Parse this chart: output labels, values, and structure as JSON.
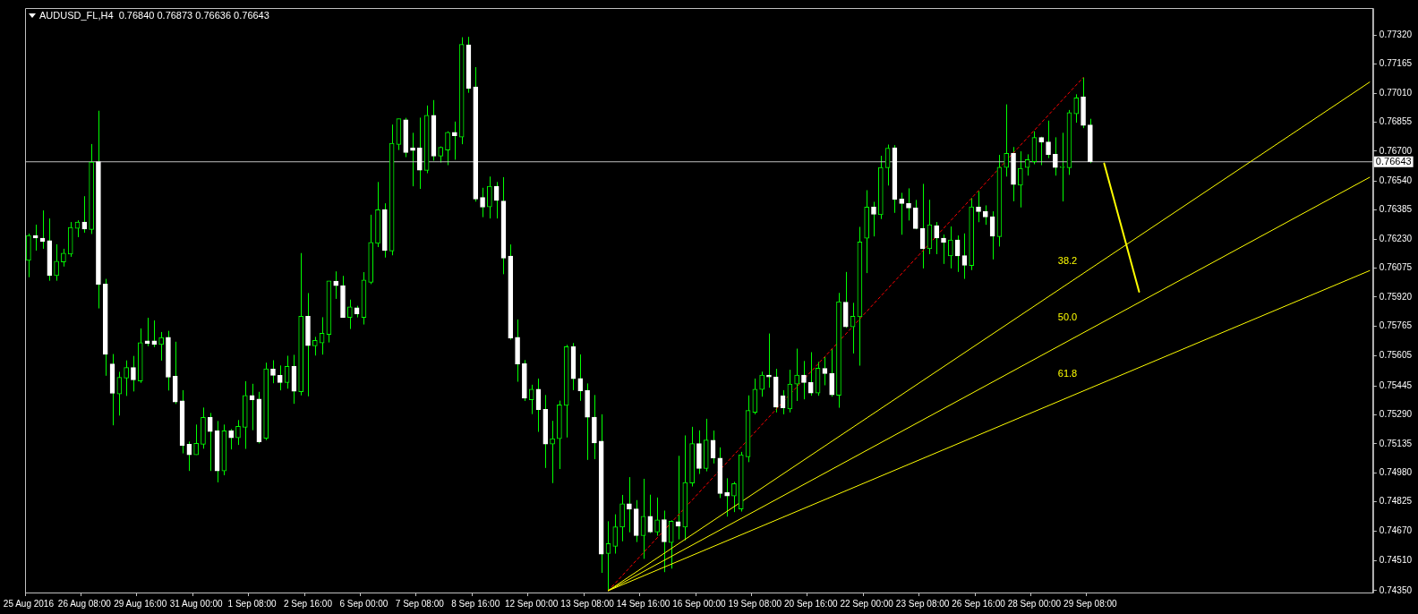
{
  "chart_data": {
    "type": "candlestick",
    "title": "AUDUSD_FL,H4  0.76840 0.76873 0.76636 0.76643",
    "categories": [
      "25 Aug 2016",
      null,
      null,
      null,
      null,
      null,
      null,
      null,
      "26 Aug 08:00",
      null,
      null,
      null,
      null,
      null,
      null,
      null,
      "29 Aug 16:00",
      null,
      null,
      null,
      null,
      null,
      null,
      null,
      "31 Aug 00:00",
      null,
      null,
      null,
      null,
      null,
      null,
      null,
      "1 Sep 08:00",
      null,
      null,
      null,
      null,
      null,
      null,
      null,
      "2 Sep 16:00",
      null,
      null,
      null,
      null,
      null,
      null,
      null,
      "6 Sep 00:00",
      null,
      null,
      null,
      null,
      null,
      null,
      null,
      "7 Sep 08:00",
      null,
      null,
      null,
      null,
      null,
      null,
      null,
      "8 Sep 16:00",
      null,
      null,
      null,
      null,
      null,
      null,
      null,
      "12 Sep 00:00",
      null,
      null,
      null,
      null,
      null,
      null,
      null,
      "13 Sep 08:00",
      null,
      null,
      null,
      null,
      null,
      null,
      null,
      "14 Sep 16:00",
      null,
      null,
      null,
      null,
      null,
      null,
      null,
      "16 Sep 00:00",
      null,
      null,
      null,
      null,
      null,
      null,
      null,
      "19 Sep 08:00",
      null,
      null,
      null,
      null,
      null,
      null,
      null,
      "20 Sep 16:00",
      null,
      null,
      null,
      null,
      null,
      null,
      null,
      "22 Sep 00:00",
      null,
      null,
      null,
      null,
      null,
      null,
      null,
      "23 Sep 08:00",
      null,
      null,
      null,
      null,
      null,
      null,
      null,
      "26 Sep 16:00",
      null,
      null,
      null,
      null,
      null,
      null,
      null,
      "28 Sep 00:00",
      null,
      null,
      null,
      null,
      null,
      null,
      null,
      "29 Sep 08:00",
      null,
      null,
      null,
      null,
      null,
      null,
      null,
      null,
      null,
      null,
      null,
      null,
      null,
      null,
      null,
      null,
      null,
      null,
      null,
      null,
      null,
      null,
      null,
      null,
      null,
      null,
      null,
      null,
      null,
      null,
      null,
      null,
      null,
      null,
      null,
      null,
      null,
      null,
      null,
      null
    ],
    "ohlc": [
      [
        0.76116,
        0.76259,
        0.76026,
        0.76249
      ],
      [
        0.76249,
        0.76307,
        0.76168,
        0.76235
      ],
      [
        0.76235,
        0.76383,
        0.76178,
        0.76216
      ],
      [
        0.76221,
        0.7634,
        0.76007,
        0.76035
      ],
      [
        0.76035,
        0.76202,
        0.76007,
        0.76111
      ],
      [
        0.76107,
        0.76178,
        0.76083,
        0.76154
      ],
      [
        0.76149,
        0.76321,
        0.76135,
        0.76292
      ],
      [
        0.76287,
        0.7633,
        0.7624,
        0.76321
      ],
      [
        0.76321,
        0.76459,
        0.76264,
        0.76283
      ],
      [
        0.76281,
        0.76738,
        0.76257,
        0.76642
      ],
      [
        0.76644,
        0.76916,
        0.75859,
        0.75988
      ],
      [
        0.75989,
        0.76017,
        0.75499,
        0.75613
      ],
      [
        0.75562,
        0.75615,
        0.75234,
        0.75405
      ],
      [
        0.75401,
        0.7552,
        0.75286,
        0.75491
      ],
      [
        0.75486,
        0.75581,
        0.75391,
        0.75543
      ],
      [
        0.75543,
        0.75605,
        0.75415,
        0.75477
      ],
      [
        0.75471,
        0.75752,
        0.75461,
        0.75676
      ],
      [
        0.75685,
        0.75809,
        0.75657,
        0.75671
      ],
      [
        0.75685,
        0.75795,
        0.75652,
        0.75666
      ],
      [
        0.75666,
        0.75733,
        0.7558,
        0.75704
      ],
      [
        0.75705,
        0.75739,
        0.7542,
        0.75491
      ],
      [
        0.75496,
        0.75681,
        0.75348,
        0.75358
      ],
      [
        0.75365,
        0.75422,
        0.75084,
        0.75126
      ],
      [
        0.75133,
        0.75147,
        0.7499,
        0.75076
      ],
      [
        0.75076,
        0.75238,
        0.75076,
        0.75138
      ],
      [
        0.75133,
        0.75329,
        0.75109,
        0.75276
      ],
      [
        0.75276,
        0.753,
        0.7499,
        0.752
      ],
      [
        0.75205,
        0.75257,
        0.74929,
        0.7499
      ],
      [
        0.7499,
        0.75238,
        0.74967,
        0.75205
      ],
      [
        0.75205,
        0.75214,
        0.75105,
        0.75167
      ],
      [
        0.75167,
        0.75262,
        0.75129,
        0.75229
      ],
      [
        0.75223,
        0.7547,
        0.75108,
        0.75394
      ],
      [
        0.75394,
        0.75456,
        0.75208,
        0.7537
      ],
      [
        0.75375,
        0.75413,
        0.75137,
        0.75146
      ],
      [
        0.75165,
        0.75569,
        0.75155,
        0.75536
      ],
      [
        0.75535,
        0.75582,
        0.75459,
        0.75501
      ],
      [
        0.75501,
        0.75554,
        0.75421,
        0.75463
      ],
      [
        0.75463,
        0.75606,
        0.7543,
        0.75549
      ],
      [
        0.75549,
        0.75611,
        0.75349,
        0.75416
      ],
      [
        0.75413,
        0.76155,
        0.75394,
        0.75817
      ],
      [
        0.75817,
        0.75941,
        0.75389,
        0.7566
      ],
      [
        0.75659,
        0.75707,
        0.75607,
        0.75688
      ],
      [
        0.75674,
        0.75812,
        0.75612,
        0.75726
      ],
      [
        0.7572,
        0.76006,
        0.75677,
        0.76006
      ],
      [
        0.76005,
        0.76057,
        0.7591,
        0.75981
      ],
      [
        0.75981,
        0.76033,
        0.7581,
        0.7581
      ],
      [
        0.75811,
        0.75906,
        0.75749,
        0.75868
      ],
      [
        0.75863,
        0.75873,
        0.75811,
        0.7583
      ],
      [
        0.75811,
        0.76053,
        0.75773,
        0.76011
      ],
      [
        0.75998,
        0.7636,
        0.75989,
        0.76212
      ],
      [
        0.76207,
        0.76535,
        0.76187,
        0.76387
      ],
      [
        0.76387,
        0.76421,
        0.76131,
        0.76168
      ],
      [
        0.76166,
        0.76842,
        0.76143,
        0.76742
      ],
      [
        0.76735,
        0.76873,
        0.76706,
        0.76873
      ],
      [
        0.76868,
        0.76878,
        0.76668,
        0.76692
      ],
      [
        0.76717,
        0.76798,
        0.76512,
        0.76703
      ],
      [
        0.76717,
        0.76879,
        0.76498,
        0.76598
      ],
      [
        0.76597,
        0.76944,
        0.76582,
        0.76892
      ],
      [
        0.76892,
        0.76973,
        0.76649,
        0.76673
      ],
      [
        0.76673,
        0.76725,
        0.76639,
        0.7672
      ],
      [
        0.76706,
        0.76806,
        0.76625,
        0.76801
      ],
      [
        0.76801,
        0.76858,
        0.76654,
        0.76782
      ],
      [
        0.76775,
        0.77309,
        0.76737,
        0.77271
      ],
      [
        0.77269,
        0.77311,
        0.77012,
        0.77035
      ],
      [
        0.77044,
        0.77149,
        0.7643,
        0.76444
      ],
      [
        0.76452,
        0.76504,
        0.76347,
        0.764
      ],
      [
        0.76402,
        0.76564,
        0.7634,
        0.76512
      ],
      [
        0.76512,
        0.76535,
        0.7634,
        0.76436
      ],
      [
        0.76433,
        0.76561,
        0.76042,
        0.76128
      ],
      [
        0.76139,
        0.76201,
        0.75692,
        0.75701
      ],
      [
        0.75705,
        0.758,
        0.75467,
        0.75562
      ],
      [
        0.75564,
        0.75583,
        0.75364,
        0.75379
      ],
      [
        0.7537,
        0.75451,
        0.75294,
        0.75427
      ],
      [
        0.75427,
        0.75484,
        0.75199,
        0.75318
      ],
      [
        0.7532,
        0.75396,
        0.75006,
        0.75134
      ],
      [
        0.75134,
        0.75258,
        0.74925,
        0.75163
      ],
      [
        0.75162,
        0.75366,
        0.75,
        0.75343
      ],
      [
        0.75341,
        0.75664,
        0.75169,
        0.75655
      ],
      [
        0.75655,
        0.75674,
        0.75422,
        0.75483
      ],
      [
        0.75484,
        0.75613,
        0.75365,
        0.75418
      ],
      [
        0.7542,
        0.75458,
        0.75049,
        0.75277
      ],
      [
        0.75277,
        0.75396,
        0.75053,
        0.75139
      ],
      [
        0.7515,
        0.75293,
        0.74445,
        0.74545
      ],
      [
        0.74549,
        0.74721,
        0.7435,
        0.74602
      ],
      [
        0.74587,
        0.74758,
        0.74548,
        0.74691
      ],
      [
        0.7469,
        0.74862,
        0.74614,
        0.74814
      ],
      [
        0.74814,
        0.74957,
        0.74662,
        0.74786
      ],
      [
        0.74787,
        0.74834,
        0.7461,
        0.74644
      ],
      [
        0.74644,
        0.74948,
        0.7452,
        0.74748
      ],
      [
        0.74748,
        0.74863,
        0.74658,
        0.74663
      ],
      [
        0.74663,
        0.74848,
        0.74644,
        0.74729
      ],
      [
        0.7473,
        0.74778,
        0.74449,
        0.74611
      ],
      [
        0.74607,
        0.74726,
        0.74468,
        0.74721
      ],
      [
        0.74719,
        0.75071,
        0.74624,
        0.74695
      ],
      [
        0.7469,
        0.7518,
        0.74619,
        0.74928
      ],
      [
        0.74926,
        0.75226,
        0.74907,
        0.75136
      ],
      [
        0.75136,
        0.75207,
        0.74974,
        0.75003
      ],
      [
        0.75003,
        0.75269,
        0.74988,
        0.75155
      ],
      [
        0.75154,
        0.75206,
        0.7503,
        0.75059
      ],
      [
        0.75059,
        0.75116,
        0.74845,
        0.74869
      ],
      [
        0.74874,
        0.74951,
        0.74746,
        0.74856
      ],
      [
        0.74856,
        0.74932,
        0.7477,
        0.74922
      ],
      [
        0.74787,
        0.75092,
        0.74773,
        0.75077
      ],
      [
        0.75066,
        0.75394,
        0.75037,
        0.75313
      ],
      [
        0.75303,
        0.75484,
        0.75293,
        0.75427
      ],
      [
        0.75426,
        0.75521,
        0.75387,
        0.75502
      ],
      [
        0.75502,
        0.75725,
        0.75435,
        0.75492
      ],
      [
        0.75493,
        0.75536,
        0.75303,
        0.75331
      ],
      [
        0.75393,
        0.75422,
        0.75293,
        0.75327
      ],
      [
        0.75322,
        0.75531,
        0.75303,
        0.75455
      ],
      [
        0.75454,
        0.75644,
        0.75364,
        0.75502
      ],
      [
        0.75502,
        0.75578,
        0.75373,
        0.75463
      ],
      [
        0.75463,
        0.75625,
        0.75392,
        0.75406
      ],
      [
        0.75406,
        0.75573,
        0.75392,
        0.7554
      ],
      [
        0.75539,
        0.756,
        0.75448,
        0.7551
      ],
      [
        0.75511,
        0.75644,
        0.75387,
        0.75397
      ],
      [
        0.75395,
        0.75942,
        0.75328,
        0.75895
      ],
      [
        0.75893,
        0.76054,
        0.75755,
        0.7576
      ],
      [
        0.75761,
        0.75889,
        0.75618,
        0.75817
      ],
      [
        0.75814,
        0.76295,
        0.75553,
        0.76214
      ],
      [
        0.76234,
        0.76491,
        0.76048,
        0.76401
      ],
      [
        0.76401,
        0.76429,
        0.76244,
        0.76362
      ],
      [
        0.7636,
        0.76675,
        0.76337,
        0.76613
      ],
      [
        0.76611,
        0.76735,
        0.76516,
        0.76716
      ],
      [
        0.76718,
        0.76732,
        0.7637,
        0.76442
      ],
      [
        0.76444,
        0.76477,
        0.76253,
        0.7642
      ],
      [
        0.7642,
        0.76501,
        0.76329,
        0.76396
      ],
      [
        0.76396,
        0.76439,
        0.76282,
        0.76286
      ],
      [
        0.76287,
        0.76525,
        0.76073,
        0.76178
      ],
      [
        0.76178,
        0.7644,
        0.76149,
        0.76307
      ],
      [
        0.76302,
        0.76321,
        0.76149,
        0.76235
      ],
      [
        0.76235,
        0.76254,
        0.76097,
        0.76211
      ],
      [
        0.7614,
        0.76297,
        0.76073,
        0.76225
      ],
      [
        0.76225,
        0.76249,
        0.76054,
        0.7614
      ],
      [
        0.76141,
        0.7626,
        0.76017,
        0.76089
      ],
      [
        0.76088,
        0.76449,
        0.76064,
        0.76402
      ],
      [
        0.76401,
        0.76486,
        0.7632,
        0.76377
      ],
      [
        0.76377,
        0.7641,
        0.76306,
        0.76348
      ],
      [
        0.76349,
        0.76378,
        0.76121,
        0.76245
      ],
      [
        0.76243,
        0.7668,
        0.7619,
        0.76614
      ],
      [
        0.76612,
        0.7695,
        0.76564,
        0.76688
      ],
      [
        0.76689,
        0.76722,
        0.76432,
        0.76522
      ],
      [
        0.76518,
        0.76699,
        0.76399,
        0.76608
      ],
      [
        0.76612,
        0.76683,
        0.76569,
        0.76655
      ],
      [
        0.76644,
        0.76806,
        0.7663,
        0.76773
      ],
      [
        0.76773,
        0.76777,
        0.76625,
        0.76749
      ],
      [
        0.76749,
        0.76863,
        0.76663,
        0.76682
      ],
      [
        0.76683,
        0.76774,
        0.76569,
        0.76612
      ],
      [
        0.76612,
        0.76798,
        0.76431,
        0.76612
      ],
      [
        0.76611,
        0.7692,
        0.76573,
        0.76906
      ],
      [
        0.76899,
        0.77004,
        0.76852,
        0.76985
      ],
      [
        0.7699,
        0.77094,
        0.76823,
        0.76837
      ],
      [
        0.7684,
        0.76873,
        0.76636,
        0.76643
      ],
      null,
      null,
      null,
      null,
      null,
      null,
      null,
      null,
      null,
      null,
      null,
      null,
      null,
      null,
      null,
      null,
      null,
      null,
      null,
      null,
      null,
      null,
      null,
      null,
      null,
      null,
      null,
      null,
      null,
      null,
      null,
      null,
      null,
      null,
      null,
      null,
      null,
      null,
      null,
      null
    ],
    "ylim": [
      0.7434,
      0.77465
    ],
    "yticks": [
      {
        "value": 0.7732,
        "label": "0.77320"
      },
      0.77165,
      {
        "value": 0.7701,
        "label": "0.77010"
      },
      0.76855,
      {
        "value": 0.767,
        "label": "0.76700"
      },
      {
        "value": 0.7654,
        "label": "0.76540"
      },
      0.76385,
      {
        "value": 0.7623,
        "label": "0.76230"
      },
      0.76075,
      {
        "value": 0.7592,
        "label": "0.75920"
      },
      0.75765,
      0.75605,
      0.75445,
      {
        "value": 0.7529,
        "label": "0.75290"
      },
      0.75135,
      {
        "value": 0.7498,
        "label": "0.74980"
      },
      0.74825,
      {
        "value": 0.7467,
        "label": "0.74670"
      },
      {
        "value": 0.7451,
        "label": "0.74510"
      },
      {
        "value": 0.7435,
        "label": "0.74350"
      }
    ],
    "series": [
      {
        "name": "38.2",
        "type": "line",
        "color": "#ffff00",
        "values": [
          null,
          null,
          null,
          null,
          null,
          null,
          null,
          null,
          null,
          null,
          null,
          null,
          null,
          null,
          null,
          null,
          null,
          null,
          null,
          null,
          null,
          null,
          null,
          null,
          null,
          null,
          null,
          null,
          null,
          null,
          null,
          null,
          null,
          null,
          null,
          null,
          null,
          null,
          null,
          null,
          null,
          null,
          null,
          null,
          null,
          null,
          null,
          null,
          null,
          null,
          null,
          null,
          null,
          null,
          null,
          null,
          null,
          null,
          null,
          null,
          null,
          null,
          null,
          null,
          null,
          null,
          null,
          null,
          null,
          null,
          null,
          null,
          null,
          null,
          null,
          null,
          null,
          null,
          null,
          null,
          null,
          null,
          null,
          0.7435,
          null,
          null,
          null,
          null,
          null,
          null,
          null,
          null,
          null,
          null,
          null,
          null,
          null,
          null,
          null,
          null,
          null,
          null,
          null,
          null,
          null,
          null,
          null,
          null,
          null,
          null,
          null,
          null,
          null,
          null,
          null,
          null,
          null,
          null,
          null,
          null,
          null,
          null,
          null,
          null,
          null,
          null,
          null,
          null,
          null,
          null,
          null,
          null,
          null,
          null,
          null,
          null,
          null,
          null,
          null,
          null,
          null,
          null,
          null,
          null,
          null,
          null,
          null,
          null,
          null,
          null,
          null,
          null,
          null,
          null,
          null,
          null,
          null,
          null,
          null,
          null,
          null,
          null,
          null,
          null,
          null,
          null,
          null,
          null,
          null,
          null,
          null,
          null,
          null,
          null,
          null,
          null,
          null,
          null,
          null,
          null,
          null,
          null,
          null,
          null,
          null,
          null,
          null,
          null,
          null,
          null,
          null,
          null,
          0.77069
        ]
      },
      {
        "name": "50.0",
        "type": "line",
        "color": "#ffff00",
        "values": [
          null,
          null,
          null,
          null,
          null,
          null,
          null,
          null,
          null,
          null,
          null,
          null,
          null,
          null,
          null,
          null,
          null,
          null,
          null,
          null,
          null,
          null,
          null,
          null,
          null,
          null,
          null,
          null,
          null,
          null,
          null,
          null,
          null,
          null,
          null,
          null,
          null,
          null,
          null,
          null,
          null,
          null,
          null,
          null,
          null,
          null,
          null,
          null,
          null,
          null,
          null,
          null,
          null,
          null,
          null,
          null,
          null,
          null,
          null,
          null,
          null,
          null,
          null,
          null,
          null,
          null,
          null,
          null,
          null,
          null,
          null,
          null,
          null,
          null,
          null,
          null,
          null,
          null,
          null,
          null,
          null,
          null,
          null,
          0.7435,
          null,
          null,
          null,
          null,
          null,
          null,
          null,
          null,
          null,
          null,
          null,
          null,
          null,
          null,
          null,
          null,
          null,
          null,
          null,
          null,
          null,
          null,
          null,
          null,
          null,
          null,
          null,
          null,
          null,
          null,
          null,
          null,
          null,
          null,
          null,
          null,
          null,
          null,
          null,
          null,
          null,
          null,
          null,
          null,
          null,
          null,
          null,
          null,
          null,
          null,
          null,
          null,
          null,
          null,
          null,
          null,
          null,
          null,
          null,
          null,
          null,
          null,
          null,
          null,
          null,
          null,
          null,
          null,
          null,
          null,
          null,
          null,
          null,
          null,
          null,
          null,
          null,
          null,
          null,
          null,
          null,
          null,
          null,
          null,
          null,
          null,
          null,
          null,
          null,
          null,
          null,
          null,
          null,
          null,
          null,
          null,
          null,
          null,
          null,
          null,
          null,
          null,
          null,
          null,
          null,
          null,
          null,
          null,
          0.7656
        ]
      },
      {
        "name": "61.8",
        "type": "line",
        "color": "#ffff00",
        "values": [
          null,
          null,
          null,
          null,
          null,
          null,
          null,
          null,
          null,
          null,
          null,
          null,
          null,
          null,
          null,
          null,
          null,
          null,
          null,
          null,
          null,
          null,
          null,
          null,
          null,
          null,
          null,
          null,
          null,
          null,
          null,
          null,
          null,
          null,
          null,
          null,
          null,
          null,
          null,
          null,
          null,
          null,
          null,
          null,
          null,
          null,
          null,
          null,
          null,
          null,
          null,
          null,
          null,
          null,
          null,
          null,
          null,
          null,
          null,
          null,
          null,
          null,
          null,
          null,
          null,
          null,
          null,
          null,
          null,
          null,
          null,
          null,
          null,
          null,
          null,
          null,
          null,
          null,
          null,
          null,
          null,
          null,
          null,
          0.7435,
          null,
          null,
          null,
          null,
          null,
          null,
          null,
          null,
          null,
          null,
          null,
          null,
          null,
          null,
          null,
          null,
          null,
          null,
          null,
          null,
          null,
          null,
          null,
          null,
          null,
          null,
          null,
          null,
          null,
          null,
          null,
          null,
          null,
          null,
          null,
          null,
          null,
          null,
          null,
          null,
          null,
          null,
          null,
          null,
          null,
          null,
          null,
          null,
          null,
          null,
          null,
          null,
          null,
          null,
          null,
          null,
          null,
          null,
          null,
          null,
          null,
          null,
          null,
          null,
          null,
          null,
          null,
          null,
          null,
          null,
          null,
          null,
          null,
          null,
          null,
          null,
          null,
          null,
          null,
          null,
          null,
          null,
          null,
          null,
          null,
          null,
          null,
          null,
          null,
          null,
          null,
          null,
          null,
          null,
          null,
          null,
          null,
          null,
          null,
          null,
          null,
          null,
          null,
          null,
          null,
          null,
          null,
          null,
          0.76061
        ]
      },
      {
        "type": "line",
        "color": "#ff0000",
        "line_style": "dashed",
        "values": [
          null,
          null,
          null,
          null,
          null,
          null,
          null,
          null,
          null,
          null,
          null,
          null,
          null,
          null,
          null,
          null,
          null,
          null,
          null,
          null,
          null,
          null,
          null,
          null,
          null,
          null,
          null,
          null,
          null,
          null,
          null,
          null,
          null,
          null,
          null,
          null,
          null,
          null,
          null,
          null,
          null,
          null,
          null,
          null,
          null,
          null,
          null,
          null,
          null,
          null,
          null,
          null,
          null,
          null,
          null,
          null,
          null,
          null,
          null,
          null,
          null,
          null,
          null,
          null,
          null,
          null,
          null,
          null,
          null,
          null,
          null,
          null,
          null,
          null,
          null,
          null,
          null,
          null,
          null,
          null,
          null,
          null,
          null,
          0.7435,
          null,
          null,
          null,
          null,
          null,
          null,
          null,
          null,
          null,
          null,
          null,
          null,
          null,
          null,
          null,
          null,
          null,
          null,
          null,
          null,
          null,
          null,
          null,
          null,
          null,
          null,
          null,
          null,
          null,
          null,
          null,
          null,
          null,
          null,
          null,
          null,
          null,
          null,
          null,
          null,
          null,
          null,
          null,
          null,
          null,
          null,
          null,
          null,
          null,
          null,
          null,
          null,
          null,
          null,
          null,
          null,
          null,
          null,
          null,
          null,
          null,
          null,
          null,
          null,
          null,
          null,
          null,
          0.77094,
          null,
          null,
          null,
          null,
          null,
          null,
          null,
          null,
          null,
          null,
          null,
          null,
          null,
          null,
          null,
          null,
          null,
          null,
          null,
          null,
          null,
          null,
          null,
          null,
          null,
          null,
          null,
          null,
          null,
          null,
          null,
          null,
          null,
          null,
          null,
          null,
          null,
          null,
          null,
          null,
          null
        ]
      },
      {
        "type": "line",
        "color": "#ffff00",
        "values": [
          null,
          null,
          null,
          null,
          null,
          null,
          null,
          null,
          null,
          null,
          null,
          null,
          null,
          null,
          null,
          null,
          null,
          null,
          null,
          null,
          null,
          null,
          null,
          null,
          null,
          null,
          null,
          null,
          null,
          null,
          null,
          null,
          null,
          null,
          null,
          null,
          null,
          null,
          null,
          null,
          null,
          null,
          null,
          null,
          null,
          null,
          null,
          null,
          null,
          null,
          null,
          null,
          null,
          null,
          null,
          null,
          null,
          null,
          null,
          null,
          null,
          null,
          null,
          null,
          null,
          null,
          null,
          null,
          null,
          null,
          null,
          null,
          null,
          null,
          null,
          null,
          null,
          null,
          null,
          null,
          null,
          null,
          null,
          null,
          null,
          null,
          null,
          null,
          null,
          null,
          null,
          null,
          null,
          null,
          null,
          null,
          null,
          null,
          null,
          null,
          null,
          null,
          null,
          null,
          null,
          null,
          null,
          null,
          null,
          null,
          null,
          null,
          null,
          null,
          null,
          null,
          null,
          null,
          null,
          null,
          null,
          null,
          null,
          null,
          null,
          null,
          null,
          null,
          null,
          null,
          null,
          null,
          null,
          null,
          null,
          null,
          null,
          null,
          null,
          null,
          null,
          null,
          null,
          null,
          null,
          null,
          null,
          null,
          null,
          null,
          null,
          null,
          null,
          null,
          0.76634,
          null,
          null,
          null,
          null,
          0.75948,
          null,
          null,
          null,
          null,
          null,
          null,
          null,
          null,
          null,
          null,
          null,
          null,
          null,
          null,
          null,
          null,
          null,
          null,
          null,
          null,
          null,
          null,
          null,
          null,
          null,
          null,
          null,
          null,
          null,
          null,
          null,
          null,
          null
        ]
      }
    ],
    "ref_lines": [
      {
        "axis": "y",
        "value": 0.76643,
        "label": "0.76643",
        "color": "#c0c0c0"
      }
    ]
  }
}
